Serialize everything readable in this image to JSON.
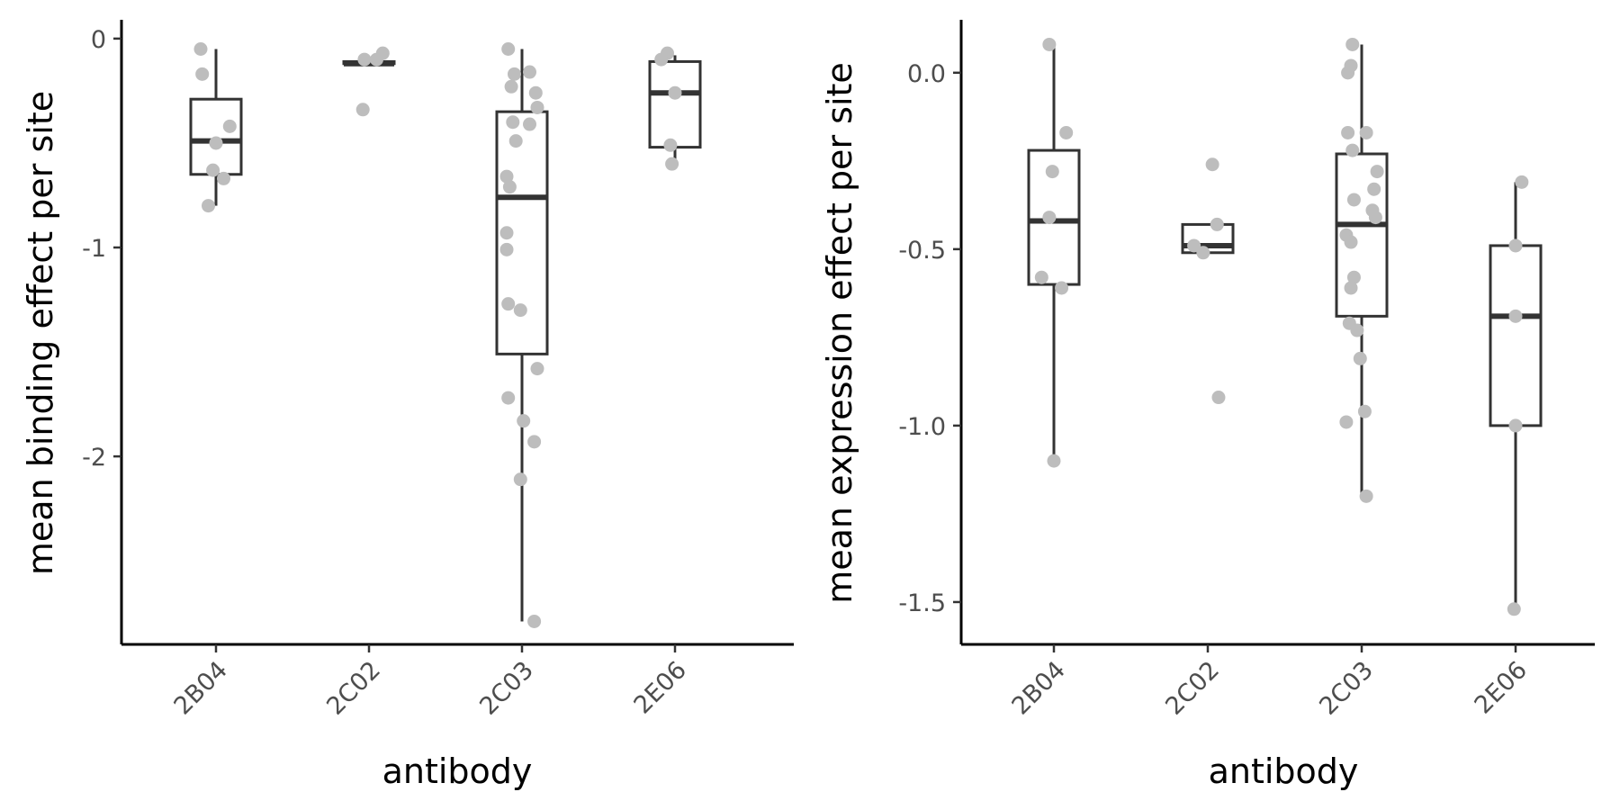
{
  "chart_data": [
    {
      "type": "box",
      "xlabel": "antibody",
      "ylabel": "mean binding effect per site",
      "categories": [
        "2B04",
        "2C02",
        "2C03",
        "2E06"
      ],
      "ylim": [
        -2.9,
        0.09
      ],
      "yticks": [
        {
          "value": 0,
          "label": "0"
        },
        {
          "value": -1,
          "label": "-1"
        },
        {
          "value": -2,
          "label": "-2"
        }
      ],
      "grid": false,
      "legend": "none",
      "boxes": [
        {
          "category": "2B04",
          "min": -0.8,
          "q1": -0.65,
          "median": -0.49,
          "q3": -0.29,
          "max": -0.05
        },
        {
          "category": "2C02",
          "min": -0.12,
          "q1": -0.12,
          "median": -0.12,
          "q3": -0.11,
          "max": -0.11
        },
        {
          "category": "2C03",
          "min": -2.79,
          "q1": -1.51,
          "median": -0.76,
          "q3": -0.35,
          "max": -0.05
        },
        {
          "category": "2E06",
          "min": -0.6,
          "q1": -0.52,
          "median": -0.26,
          "q3": -0.11,
          "max": -0.08
        }
      ],
      "points": [
        {
          "category": "2B04",
          "y": -0.05,
          "dx": -0.1
        },
        {
          "category": "2B04",
          "y": -0.17,
          "dx": -0.09
        },
        {
          "category": "2B04",
          "y": -0.42,
          "dx": 0.09
        },
        {
          "category": "2B04",
          "y": -0.5,
          "dx": 0.0
        },
        {
          "category": "2B04",
          "y": -0.63,
          "dx": -0.02
        },
        {
          "category": "2B04",
          "y": -0.67,
          "dx": 0.05
        },
        {
          "category": "2B04",
          "y": -0.8,
          "dx": -0.05
        },
        {
          "category": "2C02",
          "y": -0.07,
          "dx": 0.09
        },
        {
          "category": "2C02",
          "y": -0.1,
          "dx": -0.03
        },
        {
          "category": "2C02",
          "y": -0.1,
          "dx": 0.05
        },
        {
          "category": "2C02",
          "y": -0.34,
          "dx": -0.04
        },
        {
          "category": "2C03",
          "y": -0.05,
          "dx": -0.09
        },
        {
          "category": "2C03",
          "y": -0.16,
          "dx": 0.05
        },
        {
          "category": "2C03",
          "y": -0.17,
          "dx": -0.05
        },
        {
          "category": "2C03",
          "y": -0.23,
          "dx": -0.07
        },
        {
          "category": "2C03",
          "y": -0.26,
          "dx": 0.09
        },
        {
          "category": "2C03",
          "y": -0.33,
          "dx": 0.1
        },
        {
          "category": "2C03",
          "y": -0.4,
          "dx": -0.06
        },
        {
          "category": "2C03",
          "y": -0.41,
          "dx": 0.05
        },
        {
          "category": "2C03",
          "y": -0.49,
          "dx": -0.04
        },
        {
          "category": "2C03",
          "y": -0.66,
          "dx": -0.1
        },
        {
          "category": "2C03",
          "y": -0.71,
          "dx": -0.08
        },
        {
          "category": "2C03",
          "y": -0.93,
          "dx": -0.1
        },
        {
          "category": "2C03",
          "y": -1.01,
          "dx": -0.1
        },
        {
          "category": "2C03",
          "y": -1.27,
          "dx": -0.09
        },
        {
          "category": "2C03",
          "y": -1.3,
          "dx": -0.01
        },
        {
          "category": "2C03",
          "y": -1.58,
          "dx": 0.1
        },
        {
          "category": "2C03",
          "y": -1.72,
          "dx": -0.09
        },
        {
          "category": "2C03",
          "y": -1.83,
          "dx": 0.01
        },
        {
          "category": "2C03",
          "y": -1.93,
          "dx": 0.08
        },
        {
          "category": "2C03",
          "y": -2.11,
          "dx": -0.01
        },
        {
          "category": "2C03",
          "y": -2.79,
          "dx": 0.08
        },
        {
          "category": "2E06",
          "y": -0.07,
          "dx": -0.05
        },
        {
          "category": "2E06",
          "y": -0.1,
          "dx": -0.09
        },
        {
          "category": "2E06",
          "y": -0.26,
          "dx": 0.0
        },
        {
          "category": "2E06",
          "y": -0.51,
          "dx": -0.03
        },
        {
          "category": "2E06",
          "y": -0.6,
          "dx": -0.02
        }
      ]
    },
    {
      "type": "box",
      "xlabel": "antibody",
      "ylabel": "mean expression effect per site",
      "categories": [
        "2B04",
        "2C02",
        "2C03",
        "2E06"
      ],
      "ylim": [
        -1.62,
        0.15
      ],
      "yticks": [
        {
          "value": 0,
          "label": "0.0"
        },
        {
          "value": -0.5,
          "label": "-0.5"
        },
        {
          "value": -1,
          "label": "-1.0"
        },
        {
          "value": -1.5,
          "label": "-1.5"
        }
      ],
      "grid": false,
      "legend": "none",
      "boxes": [
        {
          "category": "2B04",
          "min": -1.1,
          "q1": -0.6,
          "median": -0.42,
          "q3": -0.22,
          "max": 0.08
        },
        {
          "category": "2C02",
          "min": -0.51,
          "q1": -0.51,
          "median": -0.49,
          "q3": -0.43,
          "max": -0.43
        },
        {
          "category": "2C03",
          "min": -1.2,
          "q1": -0.69,
          "median": -0.43,
          "q3": -0.23,
          "max": 0.08
        },
        {
          "category": "2E06",
          "min": -1.52,
          "q1": -1.0,
          "median": -0.69,
          "q3": -0.49,
          "max": -0.31
        }
      ],
      "points": [
        {
          "category": "2B04",
          "y": 0.08,
          "dx": -0.03
        },
        {
          "category": "2B04",
          "y": -0.17,
          "dx": 0.08
        },
        {
          "category": "2B04",
          "y": -0.28,
          "dx": -0.01
        },
        {
          "category": "2B04",
          "y": -0.41,
          "dx": -0.03
        },
        {
          "category": "2B04",
          "y": -0.58,
          "dx": -0.08
        },
        {
          "category": "2B04",
          "y": -0.61,
          "dx": 0.05
        },
        {
          "category": "2B04",
          "y": -1.1,
          "dx": 0.0
        },
        {
          "category": "2C02",
          "y": -0.26,
          "dx": 0.03
        },
        {
          "category": "2C02",
          "y": -0.43,
          "dx": 0.06
        },
        {
          "category": "2C02",
          "y": -0.49,
          "dx": -0.09
        },
        {
          "category": "2C02",
          "y": -0.51,
          "dx": -0.03
        },
        {
          "category": "2C02",
          "y": -0.92,
          "dx": 0.07
        },
        {
          "category": "2C03",
          "y": 0.08,
          "dx": -0.06
        },
        {
          "category": "2C03",
          "y": 0.02,
          "dx": -0.07
        },
        {
          "category": "2C03",
          "y": 0.0,
          "dx": -0.09
        },
        {
          "category": "2C03",
          "y": -0.17,
          "dx": -0.09
        },
        {
          "category": "2C03",
          "y": -0.17,
          "dx": 0.03
        },
        {
          "category": "2C03",
          "y": -0.22,
          "dx": -0.06
        },
        {
          "category": "2C03",
          "y": -0.28,
          "dx": 0.1
        },
        {
          "category": "2C03",
          "y": -0.33,
          "dx": 0.08
        },
        {
          "category": "2C03",
          "y": -0.36,
          "dx": -0.05
        },
        {
          "category": "2C03",
          "y": -0.39,
          "dx": 0.07
        },
        {
          "category": "2C03",
          "y": -0.41,
          "dx": 0.09
        },
        {
          "category": "2C03",
          "y": -0.46,
          "dx": -0.1
        },
        {
          "category": "2C03",
          "y": -0.48,
          "dx": -0.07
        },
        {
          "category": "2C03",
          "y": -0.58,
          "dx": -0.05
        },
        {
          "category": "2C03",
          "y": -0.61,
          "dx": -0.07
        },
        {
          "category": "2C03",
          "y": -0.71,
          "dx": -0.08
        },
        {
          "category": "2C03",
          "y": -0.73,
          "dx": -0.03
        },
        {
          "category": "2C03",
          "y": -0.81,
          "dx": -0.01
        },
        {
          "category": "2C03",
          "y": -0.96,
          "dx": 0.02
        },
        {
          "category": "2C03",
          "y": -0.99,
          "dx": -0.1
        },
        {
          "category": "2C03",
          "y": -1.2,
          "dx": 0.03
        },
        {
          "category": "2E06",
          "y": -0.31,
          "dx": 0.04
        },
        {
          "category": "2E06",
          "y": -0.49,
          "dx": 0.0
        },
        {
          "category": "2E06",
          "y": -0.69,
          "dx": 0.0
        },
        {
          "category": "2E06",
          "y": -1.0,
          "dx": 0.0
        },
        {
          "category": "2E06",
          "y": -1.52,
          "dx": -0.01
        }
      ]
    }
  ]
}
